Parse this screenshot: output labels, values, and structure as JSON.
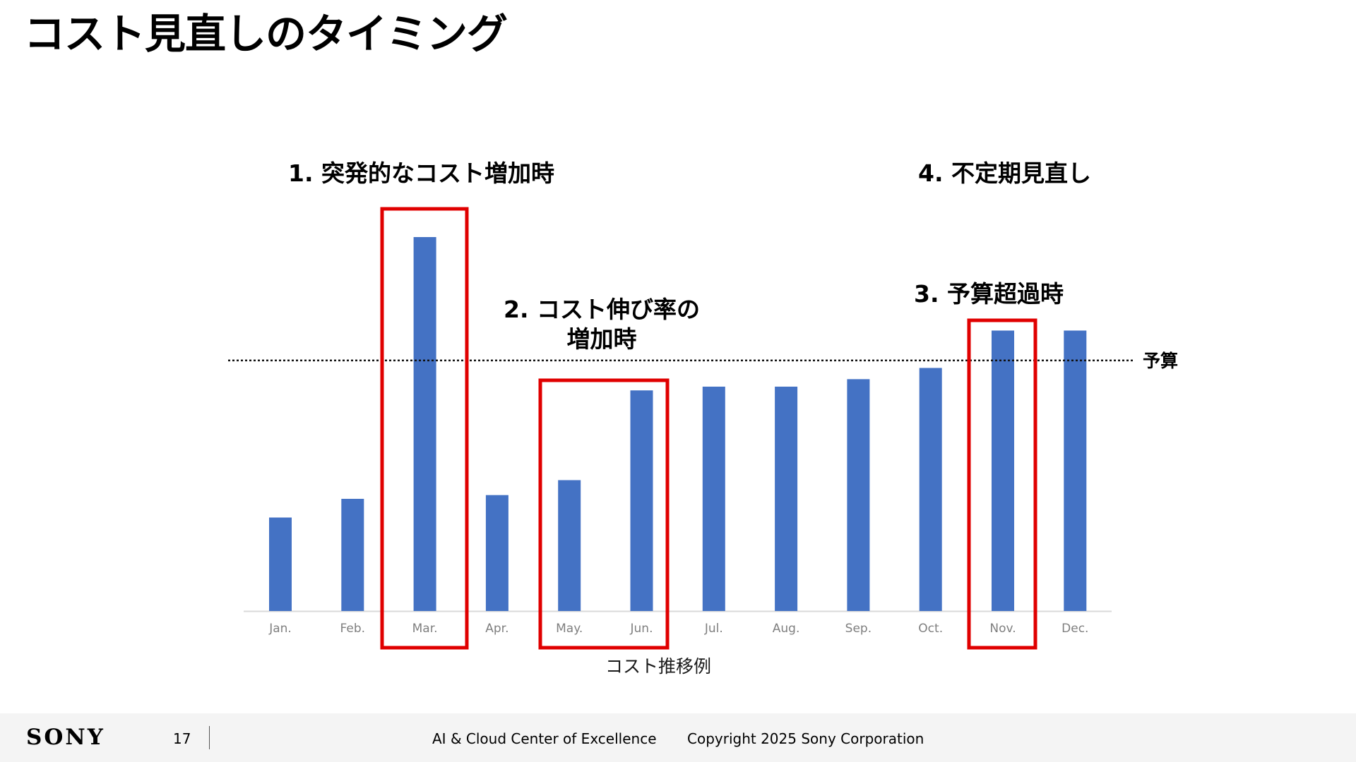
{
  "slide": {
    "title": "コスト見直しのタイミング"
  },
  "chart_data": {
    "type": "bar",
    "title": "",
    "xlabel": "コスト推移例",
    "ylabel": "",
    "categories": [
      "Jan.",
      "Feb.",
      "Mar.",
      "Apr.",
      "May.",
      "Jun.",
      "Jul.",
      "Aug.",
      "Sep.",
      "Oct.",
      "Nov.",
      "Dec."
    ],
    "values": [
      25,
      30,
      100,
      31,
      35,
      59,
      60,
      60,
      62,
      65,
      75,
      75
    ],
    "ylim": [
      0,
      100
    ],
    "grid": false,
    "bar_color": "#4472C4",
    "budget": {
      "label": "予算",
      "value": 67
    },
    "highlight_color": "#E00000",
    "highlights": [
      {
        "label": "1. 突発的なコスト増加時",
        "start": "Mar.",
        "end": "Mar."
      },
      {
        "label": "2. コスト伸び率の\n増加時",
        "start": "May.",
        "end": "Jun."
      },
      {
        "label": "3. 予算超過時",
        "start": "Nov.",
        "end": "Nov."
      }
    ],
    "annotations": [
      {
        "label": "4. 不定期見直し"
      }
    ]
  },
  "footer": {
    "logo": "SONY",
    "page_number": "17",
    "org": "AI & Cloud Center of Excellence",
    "copyright": "Copyright 2025 Sony Corporation"
  }
}
